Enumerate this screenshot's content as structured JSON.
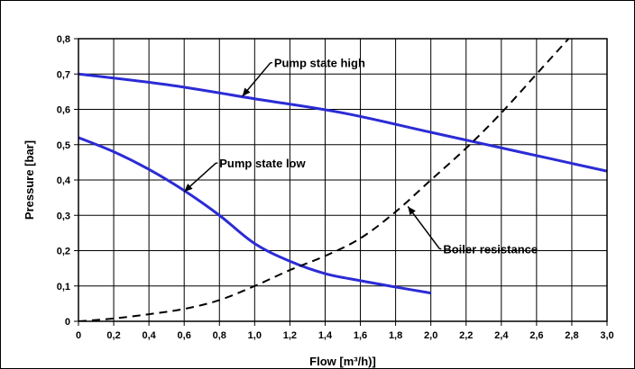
{
  "chart_data": {
    "type": "line",
    "xlabel": "Flow [m³/h)]",
    "ylabel": "Pressure [bar]",
    "xlim": [
      0,
      3.0
    ],
    "ylim": [
      0,
      0.8
    ],
    "x_ticks": [
      "0",
      "0,2",
      "0,4",
      "0,6",
      "0,8",
      "1,0",
      "1,2",
      "1,4",
      "1,6",
      "1,8",
      "2,0",
      "2,2",
      "2,4",
      "2,6",
      "2,8",
      "3,0"
    ],
    "y_ticks": [
      "0",
      "0,1",
      "0,2",
      "0,3",
      "0,4",
      "0,5",
      "0,6",
      "0,7",
      "0,8"
    ],
    "grid": true,
    "series": [
      {
        "name": "Pump state high",
        "color": "#2b2bd6",
        "style": "solid",
        "points": [
          [
            0,
            0.7
          ],
          [
            0.5,
            0.67
          ],
          [
            1.0,
            0.63
          ],
          [
            1.5,
            0.59
          ],
          [
            2.0,
            0.535
          ],
          [
            2.5,
            0.48
          ],
          [
            3.0,
            0.425
          ]
        ]
      },
      {
        "name": "Pump state low",
        "color": "#2b2bd6",
        "style": "solid",
        "points": [
          [
            0,
            0.52
          ],
          [
            0.2,
            0.48
          ],
          [
            0.4,
            0.43
          ],
          [
            0.6,
            0.37
          ],
          [
            0.8,
            0.3
          ],
          [
            1.0,
            0.22
          ],
          [
            1.2,
            0.17
          ],
          [
            1.4,
            0.135
          ],
          [
            1.6,
            0.115
          ],
          [
            1.8,
            0.097
          ],
          [
            2.0,
            0.08
          ]
        ]
      },
      {
        "name": "Boiler resistance",
        "color": "#000000",
        "style": "dashed",
        "points": [
          [
            0,
            0
          ],
          [
            0.2,
            0.008
          ],
          [
            0.4,
            0.02
          ],
          [
            0.6,
            0.035
          ],
          [
            0.8,
            0.06
          ],
          [
            1.0,
            0.1
          ],
          [
            1.2,
            0.145
          ],
          [
            1.4,
            0.185
          ],
          [
            1.6,
            0.235
          ],
          [
            1.8,
            0.31
          ],
          [
            2.0,
            0.4
          ],
          [
            2.2,
            0.49
          ],
          [
            2.4,
            0.59
          ],
          [
            2.6,
            0.7
          ],
          [
            2.8,
            0.81
          ]
        ]
      }
    ],
    "annotations": [
      {
        "text": "Pump state high",
        "point": [
          0.93,
          0.637
        ],
        "elbow": [
          1.09,
          0.732
        ],
        "text_at": [
          1.11,
          0.732
        ],
        "anchor": "start"
      },
      {
        "text": "Pump state low",
        "point": [
          0.6,
          0.367
        ],
        "elbow": [
          0.78,
          0.448
        ],
        "text_at": [
          0.8,
          0.448
        ],
        "anchor": "start"
      },
      {
        "text": "Boiler resistance",
        "point": [
          1.87,
          0.325
        ],
        "elbow": [
          2.05,
          0.205
        ],
        "text_at": [
          2.07,
          0.205
        ],
        "anchor": "start"
      }
    ]
  }
}
